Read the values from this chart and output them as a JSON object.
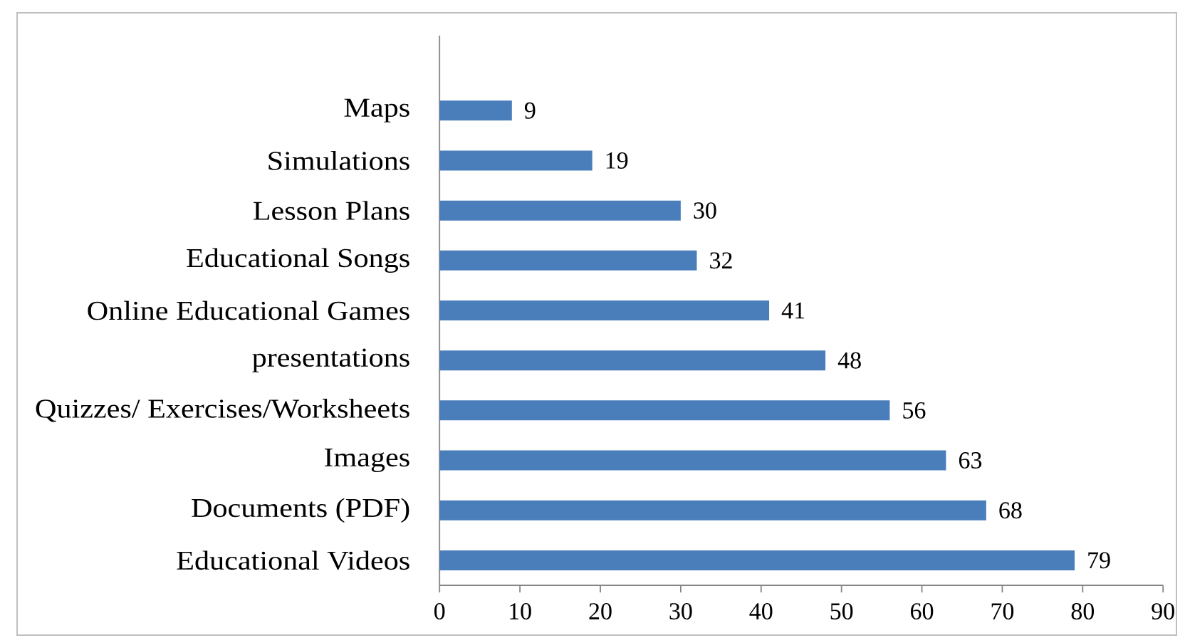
{
  "chart_data": {
    "type": "bar",
    "orientation": "horizontal",
    "categories": [
      "Maps",
      "Simulations",
      "Lesson Plans",
      "Educational Songs",
      "Online Educational Games",
      "presentations",
      "Quizzes/ Exercises/Worksheets",
      "Images",
      "Documents (PDF)",
      "Educational Videos"
    ],
    "values": [
      9,
      19,
      30,
      32,
      41,
      48,
      56,
      63,
      68,
      79
    ],
    "color": "#4a7ebb",
    "xlim": [
      0,
      90
    ],
    "xticks": [
      0,
      10,
      20,
      30,
      40,
      50,
      60,
      70,
      80,
      90
    ],
    "data_labels": true
  }
}
